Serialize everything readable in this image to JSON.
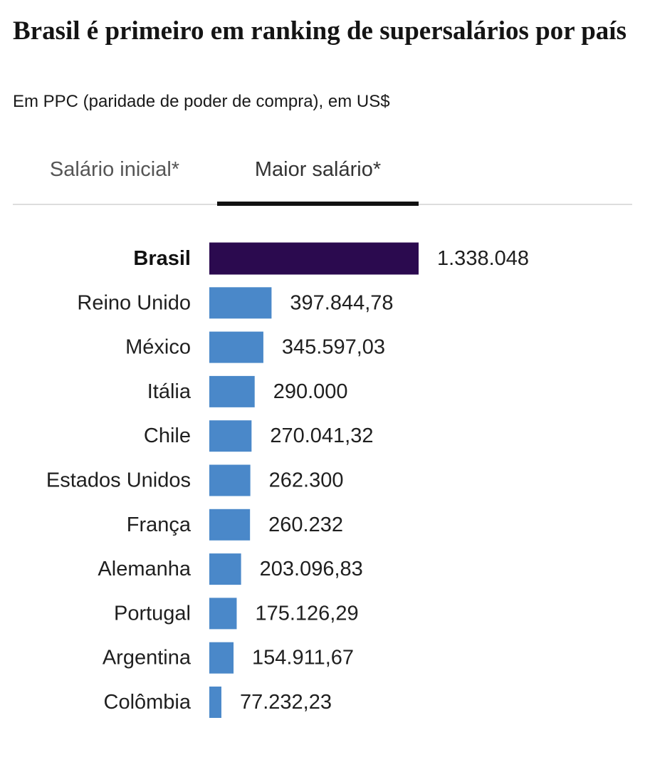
{
  "title": "Brasil é primeiro em ranking de supersalários por país",
  "subtitle": "Em PPC (paridade de poder de compra), em US$",
  "tabs": [
    {
      "label": "Salário inicial*",
      "selected": false
    },
    {
      "label": "Maior salário*",
      "selected": true
    }
  ],
  "colors": {
    "highlight": "#2b0a4f",
    "bar": "#4a88c9",
    "tab_underline": "#111111"
  },
  "chart_data": {
    "type": "bar",
    "orientation": "horizontal",
    "title": "Brasil é primeiro em ranking de supersalários por país",
    "subtitle": "Em PPC (paridade de poder de compra), em US$",
    "xlabel": "",
    "ylabel": "",
    "xlim": [
      0,
      1338048
    ],
    "highlight": "Brasil",
    "categories": [
      "Brasil",
      "Reino Unido",
      "México",
      "Itália",
      "Chile",
      "Estados Unidos",
      "França",
      "Alemanha",
      "Portugal",
      "Argentina",
      "Colômbia"
    ],
    "values": [
      1338048,
      397844.78,
      345597.03,
      290000,
      270041.32,
      262300,
      260232,
      203096.83,
      175126.29,
      154911.67,
      77232.23
    ],
    "value_labels": [
      "1.338.048",
      "397.844,78",
      "345.597,03",
      "290.000",
      "270.041,32",
      "262.300",
      "260.232",
      "203.096,83",
      "175.126,29",
      "154.911,67",
      "77.232,23"
    ]
  }
}
